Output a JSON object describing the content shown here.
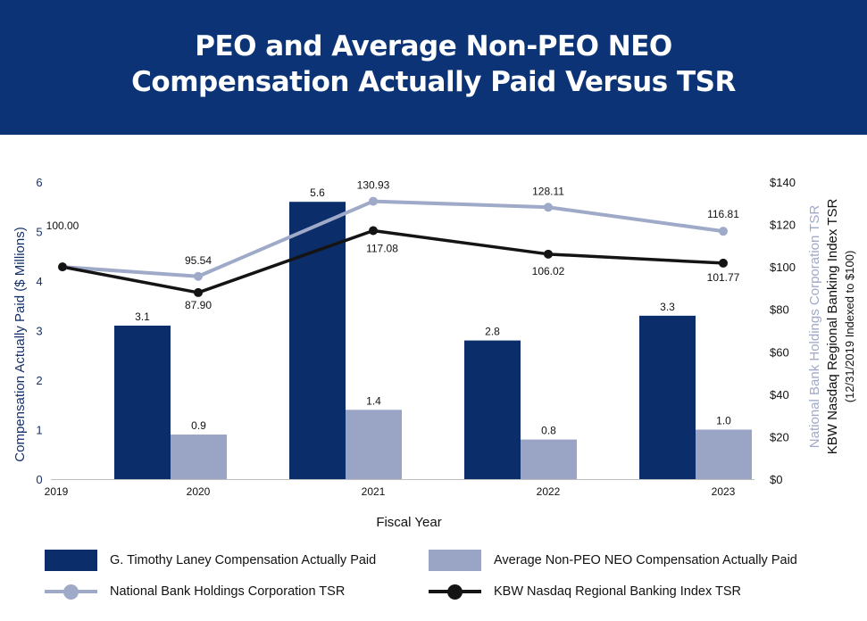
{
  "header": {
    "title_line1": "PEO and Average Non-PEO NEO",
    "title_line2": "Compensation Actually Paid Versus TSR"
  },
  "colors": {
    "header_bg": "#0b3375",
    "peo_bar": "#0b2e6b",
    "neo_bar": "#9aa4c4",
    "nbhc_line": "#9fa9c8",
    "kbw_line": "#141414",
    "left_axis": "#16306a",
    "right_axis_light": "#9fa9c8",
    "right_axis_dark": "#111111"
  },
  "legend": {
    "peo": "G. Timothy Laney Compensation Actually Paid",
    "neo": "Average Non-PEO NEO Compensation Actually Paid",
    "nbhc": "National Bank Holdings Corporation TSR",
    "kbw": "KBW Nasdaq Regional Banking Index TSR"
  },
  "chart_data": {
    "type": "bar",
    "title": "PEO and Average Non-PEO NEO Compensation Actually Paid Versus TSR",
    "xlabel": "Fiscal Year",
    "ylabel": "Compensation Actually Paid ($ Millions)",
    "y2label_line1": "National Bank Holdings Corporation TSR",
    "y2label_line2": "KBW Nasdaq Regional Banking Index TSR",
    "y2label_line3": "(12/31/2019 Indexed to $100)",
    "x_ticks": [
      "2019",
      "2020",
      "2021",
      "2022",
      "2023"
    ],
    "ylim": [
      0,
      6
    ],
    "y_ticks": [
      "0",
      "1",
      "2",
      "3",
      "4",
      "5",
      "6"
    ],
    "y2lim": [
      0,
      140
    ],
    "y2_ticks": [
      "$0",
      "$20",
      "$40",
      "$60",
      "$80",
      "$100",
      "$120",
      "$140"
    ],
    "bar_categories": [
      "2020",
      "2021",
      "2022",
      "2023"
    ],
    "bar_series": [
      {
        "name": "G. Timothy Laney Compensation Actually Paid",
        "values": [
          3.1,
          5.6,
          2.8,
          3.3
        ],
        "labels": [
          "3.1",
          "5.6",
          "2.8",
          "3.3"
        ]
      },
      {
        "name": "Average Non-PEO NEO Compensation Actually Paid",
        "values": [
          0.9,
          1.4,
          0.8,
          1.0
        ],
        "labels": [
          "0.9",
          "1.4",
          "0.8",
          "1.0"
        ]
      }
    ],
    "line_categories": [
      "2019",
      "2020",
      "2021",
      "2022",
      "2023"
    ],
    "line_series": [
      {
        "name": "National Bank Holdings Corporation TSR",
        "values": [
          100.0,
          95.54,
          130.93,
          128.11,
          116.81
        ],
        "labels": [
          "100.00",
          "95.54",
          "130.93",
          "128.11",
          "116.81"
        ]
      },
      {
        "name": "KBW Nasdaq Regional Banking Index TSR",
        "values": [
          100.0,
          87.9,
          117.08,
          106.02,
          101.77
        ],
        "labels": [
          "",
          "87.90",
          "117.08",
          "106.02",
          "101.77"
        ]
      }
    ]
  }
}
